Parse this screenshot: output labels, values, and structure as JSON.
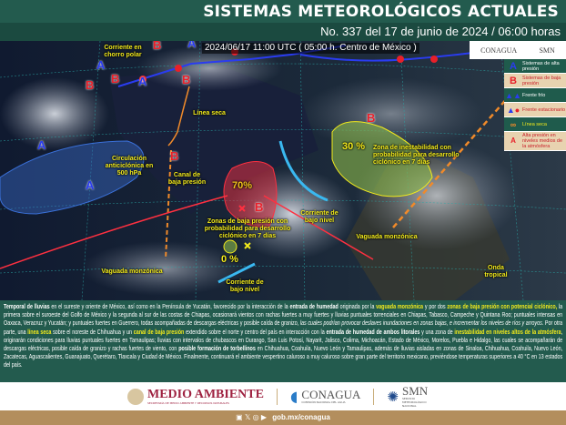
{
  "header": {
    "title": "SISTEMAS METEOROLÓGICOS ACTUALES",
    "subtitle": "No. 337 del 17 de junio de 2024 / 06:00 horas"
  },
  "map": {
    "timestamp": "2024/06/17 11:00 UTC ( 05:00 h. Centro de México )",
    "labels": {
      "jet": "Corriente en chorro polar",
      "dry_line": "Línea seca",
      "anticyclone": "Circulación anticiclónica en 500 hPa",
      "trough": "Canal de baja presión",
      "low_zones": "Zonas de baja presión con probabilidad para desarrollo ciclónico en 7 días",
      "low_level_jet_1": "Corriente de bajo nivel",
      "low_level_jet_2": "Corriente de bajo nivel",
      "monsoon_1": "Vaguada monzónica",
      "monsoon_2": "Vaguada monzónica",
      "instability": "Zona de inestabilidad con probabilidad para desarrollo ciclónico en 7 días",
      "tropical_wave": "Onda tropical"
    },
    "probabilities": {
      "gulf": "70%",
      "pacific": "0 %",
      "atlantic": "30 %"
    },
    "letters": {
      "high": "A",
      "low": "B"
    }
  },
  "logos": {
    "conagua": "CONAGUA",
    "smn": "SMN",
    "medio_ambiente": "MEDIO AMBIENTE",
    "medio_ambiente_sub": "SECRETARÍA DE MEDIO AMBIENTE Y RECURSOS NATURALES",
    "conagua_sub": "COMISIÓN NACIONAL DEL AGUA",
    "smn_sub": "SERVICIO METEOROLÓGICO NACIONAL"
  },
  "legend": [
    {
      "icon": "A",
      "label": "Sistemas de alta presión"
    },
    {
      "icon": "B",
      "label": "Sistemas de baja presión"
    },
    {
      "icon": "cold-front",
      "label": "Frente frío"
    },
    {
      "icon": "stationary-front",
      "label": "Frente estacionario"
    },
    {
      "icon": "dry-line",
      "label": "Línea seca"
    },
    {
      "icon": "A",
      "label": "Alta presión en niveles medios de la atmósfera"
    }
  ],
  "paragraph": [
    "Temporal de lluvias",
    " en el sureste y oriente de México, así como en la Península de Yucatán, favorecido por la interacción de la ",
    "entrada de humedad",
    " originada por la ",
    "vaguada monzónica",
    " y por dos ",
    "zonas de baja presión con potencial ciclónico,",
    " la primera sobre el suroeste del Golfo de México y la segunda al sur de las costas de Chiapas, ocasionará vientos con rachas fuertes a muy fuertes y lluvias puntuales torrenciales en Chiapas, Tabasco, Campeche y Quintana Roo; puntuales intensas en Oaxaca, Veracruz y Yucatán; y puntuales fuertes en Guerrero, todas acompañadas de descargas eléctricas y posible caída de granizo, ",
    "las cuales podrían provocar deslaves inundaciones en zonas bajas, e incrementar los niveles de ríos y arroyos.",
    " Por otra parte, una ",
    "línea seca",
    " sobre el noreste de Chihuahua y un ",
    "canal de baja presión",
    " extendido sobre el norte y centro del país en interacción con la ",
    "entrada de humedad de ambos litorales",
    " y una zona de ",
    "inestabilidad en niveles altos de la atmósfera",
    ", originarán condiciones para lluvias puntuales fuertes en Tamaulipas; lluvias con intervalos de chubascos en Durango, San Luis Potosí, Nayarit, Jalisco, Colima, Michoacán, Estado de México, Morelos, Puebla e Hidalgo, las cuales se acompañarán de descargas eléctricas, posible caída de granizo y rachas fuertes de viento, con ",
    "posible formación de torbellinos",
    " en Chihuahua, Coahuila, Nuevo León y Tamaulipas, además de lluvias aisladas en zonas de Sinaloa, Chihuahua, Coahuila, Nuevo León, Zacatecas, Aguascalientes, Guanajuato, Querétaro, Tlaxcala y Ciudad de México. Finalmente, continuará el ambiente vespertino caluroso a muy caluroso sobre gran parte del territorio mexicano, previéndose temperaturas superiores a 40 °C en 13 estados del país."
  ],
  "footer": {
    "website": "gob.mx/conagua",
    "social": [
      "facebook-icon",
      "x-icon",
      "instagram-icon",
      "youtube-icon"
    ]
  },
  "colors": {
    "green": "#235b4e",
    "gold": "#b38e5d",
    "low": "#e8202a",
    "high": "#2a3cf0",
    "highlight": "#f2ea1c"
  }
}
